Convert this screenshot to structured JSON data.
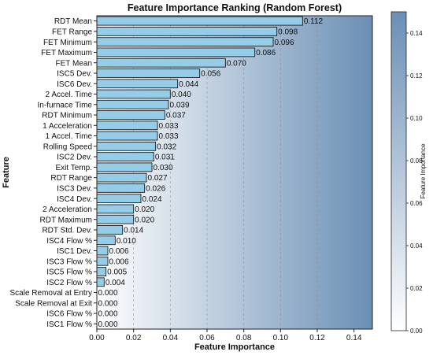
{
  "chart_data": {
    "type": "bar",
    "orientation": "horizontal",
    "title": "Feature Importance Ranking (Random Forest)",
    "xlabel": "Feature Importance",
    "ylabel": "Feature",
    "xlim": [
      0,
      0.15
    ],
    "x_ticks": [
      "0.00",
      "0.02",
      "0.04",
      "0.06",
      "0.08",
      "0.10",
      "0.12",
      "0.14"
    ],
    "grid": "vertical dashed",
    "categories": [
      "RDT Mean",
      "FET Range",
      "FET Minimum",
      "FET Maximum",
      "FET Mean",
      "ISC5 Dev.",
      "ISC6 Dev.",
      "2 Accel. Time",
      "In-furnace Time",
      "RDT Minimum",
      "1 Acceleration",
      "1 Accel. Time",
      "Rolling Speed",
      "ISC2 Dev.",
      "Exit Temp.",
      "RDT Range",
      "ISC3 Dev.",
      "ISC4 Dev.",
      "2 Acceleration",
      "RDT Maximum",
      "RDT Std. Dev.",
      "ISC4 Flow %",
      "ISC1 Dev.",
      "ISC3 Flow %",
      "ISC5 Flow %",
      "ISC2 Flow %",
      "Scale Removal at Entry",
      "Scale Removal at Exit",
      "ISC6 Flow %",
      "ISC1 Flow %"
    ],
    "values": [
      0.112,
      0.098,
      0.096,
      0.086,
      0.07,
      0.056,
      0.044,
      0.04,
      0.039,
      0.037,
      0.033,
      0.033,
      0.032,
      0.031,
      0.03,
      0.027,
      0.026,
      0.024,
      0.02,
      0.02,
      0.014,
      0.01,
      0.006,
      0.006,
      0.005,
      0.004,
      0.0,
      0.0,
      0.0,
      0.0
    ],
    "value_labels": [
      "0.112",
      "0.098",
      "0.096",
      "0.086",
      "0.070",
      "0.056",
      "0.044",
      "0.040",
      "0.039",
      "0.037",
      "0.033",
      "0.033",
      "0.032",
      "0.031",
      "0.030",
      "0.027",
      "0.026",
      "0.024",
      "0.020",
      "0.020",
      "0.014",
      "0.010",
      "0.006",
      "0.006",
      "0.005",
      "0.004",
      "0.000",
      "0.000",
      "0.000",
      "0.000"
    ],
    "bar_color": "#95cde8",
    "bar_edge_color": "#1a1a1a",
    "background_gradient": [
      "#ffffff",
      "#6b8fb5"
    ],
    "colorbar": {
      "label": "Feature Importance",
      "range": [
        0,
        0.15
      ],
      "ticks": [
        "0.00",
        "0.02",
        "0.04",
        "0.06",
        "0.08",
        "0.10",
        "0.12",
        "0.14"
      ],
      "colors": [
        "#ffffff",
        "#6b8fb5"
      ]
    }
  }
}
